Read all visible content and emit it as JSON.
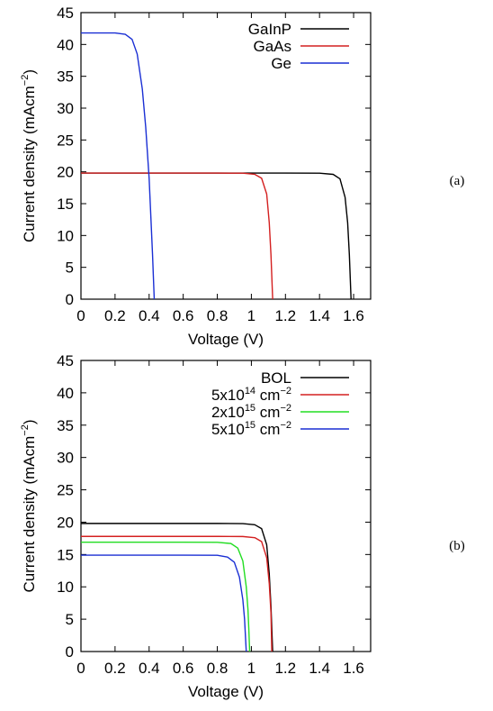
{
  "chart_data": [
    {
      "type": "line",
      "panel_label": "(a)",
      "xlabel": "Voltage (V)",
      "ylabel": "Current density (mAcm",
      "ylabel_sup": "−2",
      "ylabel_end": ")",
      "xlim": [
        0,
        1.7
      ],
      "ylim": [
        0,
        45
      ],
      "xticks": [
        "0",
        "0.2",
        "0.4",
        "0.6",
        "0.8",
        "1",
        "1.2",
        "1.4",
        "1.6"
      ],
      "yticks": [
        "0",
        "5",
        "10",
        "15",
        "20",
        "25",
        "30",
        "35",
        "40",
        "45"
      ],
      "legend_position": "top-right",
      "series": [
        {
          "name": "GaInP",
          "color": "#000000",
          "jsc": 19.8,
          "voc": 1.585,
          "x": [
            0,
            0.2,
            0.4,
            0.6,
            0.8,
            1.0,
            1.2,
            1.4,
            1.48,
            1.52,
            1.55,
            1.565,
            1.575,
            1.585
          ],
          "y": [
            19.8,
            19.8,
            19.8,
            19.8,
            19.8,
            19.8,
            19.8,
            19.78,
            19.6,
            18.9,
            16,
            12,
            7,
            0
          ]
        },
        {
          "name": "GaAs",
          "color": "#d42020",
          "jsc": 19.8,
          "voc": 1.125,
          "x": [
            0,
            0.2,
            0.4,
            0.6,
            0.8,
            0.95,
            1.02,
            1.06,
            1.09,
            1.105,
            1.115,
            1.125
          ],
          "y": [
            19.8,
            19.8,
            19.8,
            19.8,
            19.8,
            19.78,
            19.6,
            19.0,
            16.5,
            12,
            7,
            0
          ]
        },
        {
          "name": "Ge",
          "color": "#1a2fd4",
          "jsc": 41.8,
          "voc": 0.43,
          "x": [
            0,
            0.1,
            0.2,
            0.26,
            0.3,
            0.33,
            0.36,
            0.38,
            0.4,
            0.41,
            0.42,
            0.43
          ],
          "y": [
            41.8,
            41.8,
            41.8,
            41.6,
            40.8,
            38.5,
            33,
            27,
            19,
            13,
            7,
            0
          ]
        }
      ]
    },
    {
      "type": "line",
      "panel_label": "(b)",
      "xlabel": "Voltage (V)",
      "ylabel": "Current density (mAcm",
      "ylabel_sup": "−2",
      "ylabel_end": ")",
      "xlim": [
        0,
        1.7
      ],
      "ylim": [
        0,
        45
      ],
      "xticks": [
        "0",
        "0.2",
        "0.4",
        "0.6",
        "0.8",
        "1",
        "1.2",
        "1.4",
        "1.6"
      ],
      "yticks": [
        "0",
        "5",
        "10",
        "15",
        "20",
        "25",
        "30",
        "35",
        "40",
        "45"
      ],
      "legend_position": "top-right",
      "series": [
        {
          "name": "BOL",
          "name_base": "BOL",
          "name_sup": "",
          "name_unit": "",
          "name_unit_sup": "",
          "color": "#000000",
          "x": [
            0,
            0.2,
            0.4,
            0.6,
            0.8,
            0.95,
            1.02,
            1.06,
            1.09,
            1.105,
            1.115,
            1.125
          ],
          "y": [
            19.8,
            19.8,
            19.8,
            19.8,
            19.8,
            19.78,
            19.6,
            19.0,
            16.5,
            12,
            7,
            0
          ]
        },
        {
          "name": "5x10^14 cm^-2",
          "name_base": "5x10",
          "name_sup": "14",
          "name_unit": " cm",
          "name_unit_sup": "−2",
          "color": "#d42020",
          "x": [
            0,
            0.2,
            0.4,
            0.6,
            0.8,
            0.95,
            1.02,
            1.06,
            1.09,
            1.105,
            1.115,
            1.12
          ],
          "y": [
            17.8,
            17.8,
            17.8,
            17.8,
            17.8,
            17.78,
            17.6,
            17.0,
            14.5,
            10.5,
            6,
            0
          ]
        },
        {
          "name": "2x10^15 cm^-2",
          "name_base": "2x10",
          "name_sup": "15",
          "name_unit": " cm",
          "name_unit_sup": "−2",
          "color": "#22dd22",
          "x": [
            0,
            0.2,
            0.4,
            0.6,
            0.8,
            0.88,
            0.92,
            0.95,
            0.97,
            0.98,
            0.985,
            0.99
          ],
          "y": [
            16.9,
            16.9,
            16.9,
            16.9,
            16.88,
            16.7,
            16.0,
            14,
            10,
            6.5,
            3.5,
            0
          ]
        },
        {
          "name": "5x10^15 cm^-2",
          "name_base": "5x10",
          "name_sup": "15",
          "name_unit": " cm",
          "name_unit_sup": "−2",
          "color": "#1a2fd4",
          "x": [
            0,
            0.2,
            0.4,
            0.6,
            0.8,
            0.86,
            0.9,
            0.93,
            0.95,
            0.96,
            0.965,
            0.97
          ],
          "y": [
            14.9,
            14.9,
            14.9,
            14.9,
            14.88,
            14.6,
            13.8,
            11.5,
            8,
            5,
            2.5,
            0
          ]
        }
      ]
    }
  ]
}
